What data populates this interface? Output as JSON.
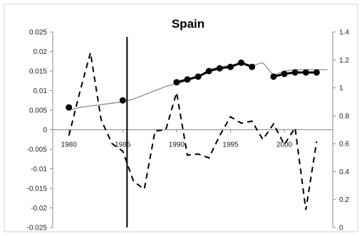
{
  "chart_data": {
    "type": "line",
    "title": "Spain",
    "xlabel": "",
    "ylabel": "",
    "x_ticks": [
      "1980",
      "1985",
      "1990",
      "1995",
      "2000"
    ],
    "xlim": [
      1978.5,
      2004.5
    ],
    "y_left": {
      "lim": [
        -0.025,
        0.025
      ],
      "ticks": [
        "-0.025",
        "-0.02",
        "-0.015",
        "-0.01",
        "-0.005",
        "0",
        "0.005",
        "0.01",
        "0.015",
        "0.02",
        "0.025"
      ]
    },
    "y_right": {
      "lim": [
        0,
        1.4
      ],
      "ticks": [
        "0",
        "0.2",
        "0.4",
        "0.6",
        "0.8",
        "1",
        "1.2",
        "1.4"
      ]
    },
    "vertical_line_x": 1985.4,
    "grid": false,
    "legend": "none",
    "series": [
      {
        "axis": "left",
        "style": "dashed",
        "x": [
          1980,
          1981,
          1982,
          1983,
          1984,
          1985,
          1986,
          1987,
          1988,
          1989,
          1990,
          1991,
          1992,
          1993,
          1994,
          1995,
          1996,
          1997,
          1998,
          1999,
          2000,
          2001,
          2002,
          2003
        ],
        "values": [
          -0.0015,
          0.0095,
          0.0197,
          0.0025,
          -0.0035,
          -0.0055,
          -0.0132,
          -0.0152,
          -0.0003,
          0.0,
          0.0095,
          -0.0065,
          -0.0062,
          -0.0072,
          -0.0015,
          0.0033,
          0.0017,
          0.0022,
          -0.0025,
          0.0015,
          -0.0038,
          0.0005,
          -0.0205,
          -0.003
        ]
      },
      {
        "axis": "right",
        "style": "solid-thin",
        "x": [
          1980,
          1981,
          1982,
          1983,
          1984,
          1985,
          1986,
          1987,
          1988,
          1989,
          1990,
          1991,
          1992,
          1993,
          1994,
          1995,
          1996,
          1997,
          1998,
          1999,
          2000,
          2001,
          2002,
          2003,
          2004
        ],
        "values": [
          0.84,
          0.86,
          0.87,
          0.88,
          0.89,
          0.9,
          0.92,
          0.95,
          0.98,
          1.01,
          1.03,
          1.05,
          1.08,
          1.13,
          1.15,
          1.16,
          1.18,
          1.16,
          1.18,
          1.09,
          1.12,
          1.13,
          1.13,
          1.13,
          1.13
        ]
      },
      {
        "axis": "right",
        "style": "markers",
        "x": [
          1980,
          1985,
          1990,
          1991,
          1992,
          1993,
          1994,
          1995,
          1996,
          1997,
          1999,
          2000,
          2001,
          2002,
          2003
        ],
        "values": [
          0.86,
          0.91,
          1.04,
          1.06,
          1.08,
          1.12,
          1.14,
          1.15,
          1.18,
          1.15,
          1.08,
          1.1,
          1.11,
          1.11,
          1.11
        ]
      }
    ]
  }
}
